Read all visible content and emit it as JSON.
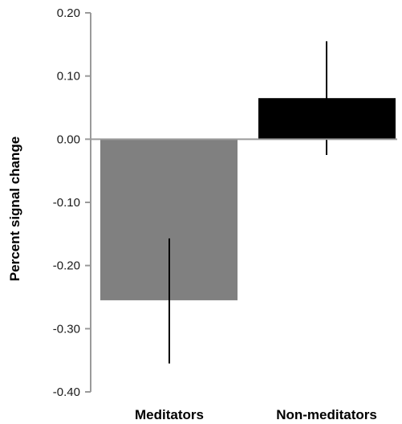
{
  "chart_data": {
    "type": "bar",
    "title": "",
    "xlabel": "",
    "ylabel": "Percent signal change",
    "ylim": [
      -0.4,
      0.2
    ],
    "yticks": [
      "0.20",
      "0.10",
      "0.00",
      "-0.10",
      "-0.20",
      "-0.30",
      "-0.40"
    ],
    "categories": [
      "Meditators",
      "Non-meditators"
    ],
    "values": [
      -0.255,
      0.065
    ],
    "error_bars": [
      {
        "low": -0.355,
        "high": -0.157
      },
      {
        "low": -0.025,
        "high": 0.155
      }
    ],
    "colors": [
      "#808080",
      "#000000"
    ],
    "grid": false,
    "legend": "none"
  }
}
